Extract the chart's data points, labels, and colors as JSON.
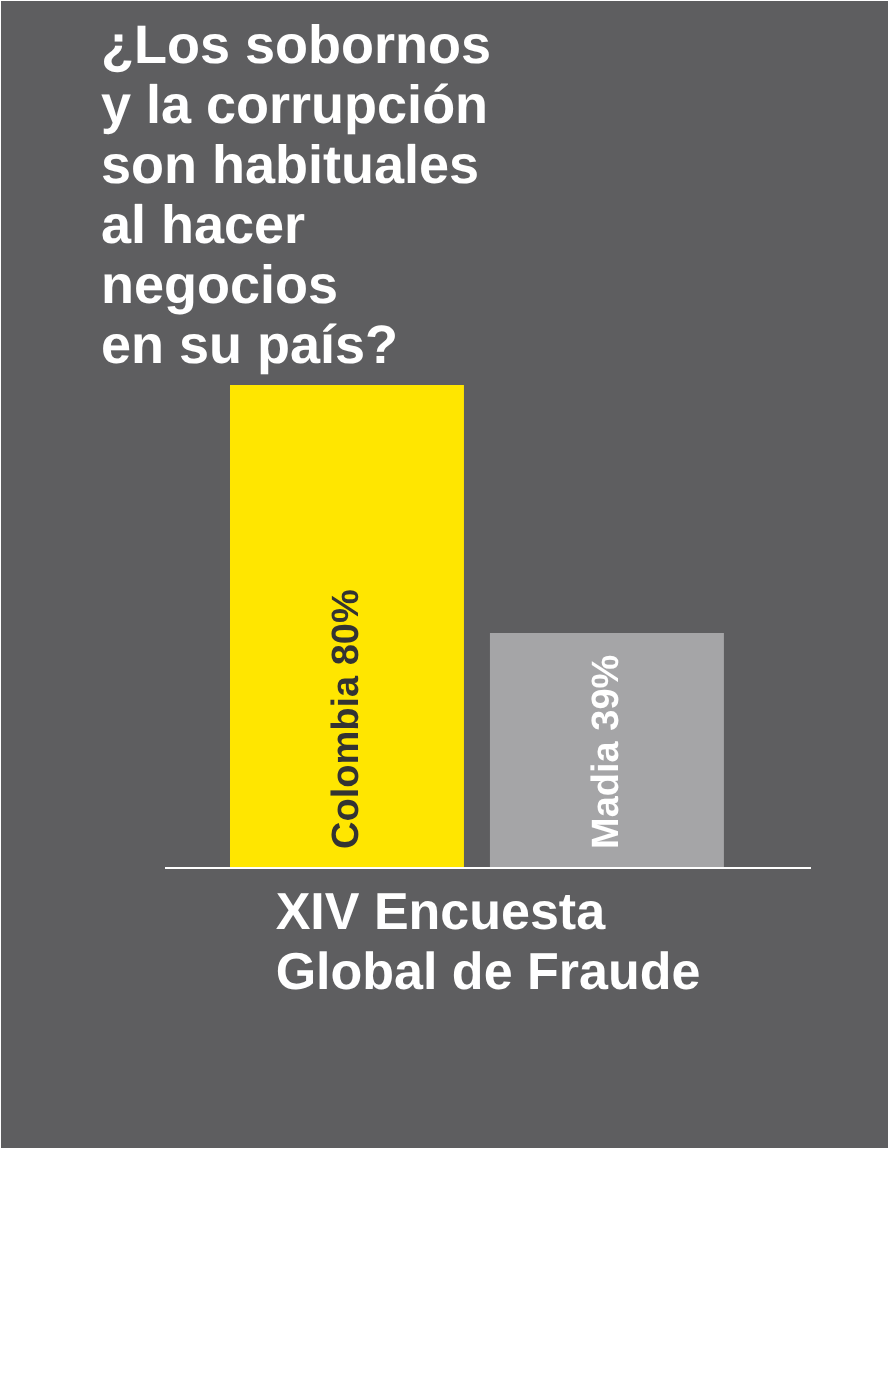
{
  "chart_data": {
    "type": "bar",
    "title": "¿Los sobornos\ny la corrupción\nson habituales\nal hacer\nnegocios\nen su país?",
    "categories": [
      null,
      null
    ],
    "values": [
      80,
      39
    ],
    "colors": [
      "#ffe600",
      "#a5a5a7"
    ],
    "value_labels": [
      "Colombia 80%",
      "Madia 39%"
    ],
    "annotations": [
      "XIV Encuesta\nGlobal de Fraude"
    ]
  }
}
